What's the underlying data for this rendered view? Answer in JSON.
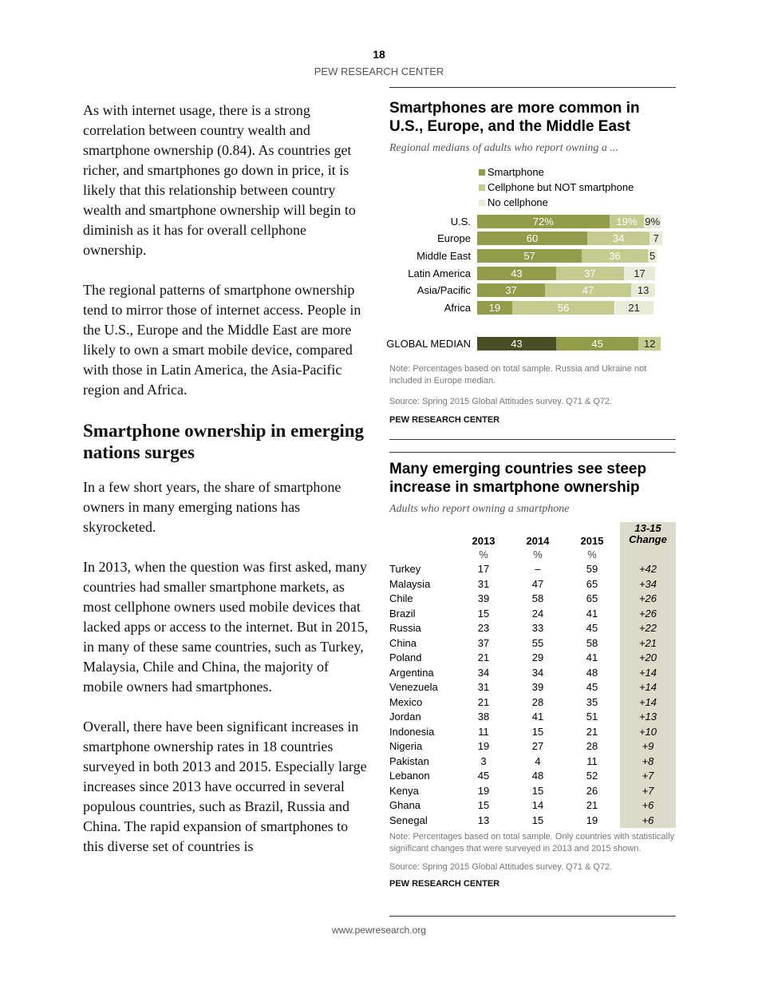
{
  "header": {
    "page_number": "18",
    "org": "PEW RESEARCH CENTER"
  },
  "body": {
    "p1": "As with internet usage, there is a strong correlation between country wealth and smartphone ownership (0.84). As countries get richer, and smartphones go down in price, it is likely that this relationship between country wealth and smartphone ownership will begin to diminish as it has for overall cellphone ownership.",
    "p2": "The regional patterns of smartphone ownership tend to mirror those of internet access. People in the U.S., Europe and the Middle East are more likely to own a smart mobile device, compared with those in Latin America, the Asia-Pacific region and Africa.",
    "h2": "Smartphone ownership in emerging nations surges",
    "p3": "In a few short years, the share of smartphone owners in many emerging nations has skyrocketed.",
    "p4": "In 2013, when the question was first asked, many countries had smaller smartphone markets, as most cellphone owners used mobile devices that lacked apps or access to the internet. But in 2015, in many of these same countries, such as Turkey, Malaysia, Chile and China, the majority of mobile owners had smartphones.",
    "p5": "Overall, there have been significant increases in smartphone ownership rates in 18 countries surveyed in both 2013 and 2015. Especially large increases since 2013 have occurred in several populous countries, such as Brazil, Russia and China. The rapid expansion of smartphones to this diverse set of countries is"
  },
  "chart_data": [
    {
      "type": "bar",
      "stacked": true,
      "orientation": "horizontal",
      "title": "Smartphones are more common in U.S., Europe, and the Middle East",
      "subtitle": "Regional medians of adults who report owning a ...",
      "categories": [
        "U.S.",
        "Europe",
        "Middle East",
        "Latin America",
        "Asia/Pacific",
        "Africa",
        "GLOBAL MEDIAN"
      ],
      "series": [
        {
          "name": "Smartphone",
          "values": [
            72,
            60,
            57,
            43,
            37,
            19,
            43
          ],
          "color": "#939c48"
        },
        {
          "name": "Cellphone but NOT smartphone",
          "values": [
            19,
            34,
            36,
            37,
            47,
            56,
            45
          ],
          "color": "#c5ca8f"
        },
        {
          "name": "No cellphone",
          "values": [
            9,
            7,
            5,
            17,
            13,
            21,
            12
          ],
          "color": "#e9ebd9"
        }
      ],
      "global_median_colors": [
        "#4b4d25",
        "#939c48",
        "#c5ca8f"
      ],
      "data_labels": [
        [
          "72%",
          "19%",
          "9%"
        ],
        [
          "60",
          "34",
          "7"
        ],
        [
          "57",
          "36",
          "5"
        ],
        [
          "43",
          "37",
          "17"
        ],
        [
          "37",
          "47",
          "13"
        ],
        [
          "19",
          "56",
          "21"
        ],
        [
          "43",
          "45",
          "12"
        ]
      ],
      "legend": "top",
      "note": "Note: Percentages based on total sample. Russia and Ukraine not included in Europe median.",
      "source": "Source: Spring 2015 Global Attitudes survey. Q71 & Q72.",
      "brand": "PEW RESEARCH CENTER"
    },
    {
      "type": "table",
      "title": "Many emerging countries see steep increase in smartphone ownership",
      "subtitle": "Adults who report owning a smartphone",
      "columns": [
        "2013",
        "2014",
        "2015",
        "13-15 Change"
      ],
      "units": [
        "%",
        "%",
        "%"
      ],
      "rows": [
        [
          "Turkey",
          "17",
          "–",
          "59",
          "+42"
        ],
        [
          "Malaysia",
          "31",
          "47",
          "65",
          "+34"
        ],
        [
          "Chile",
          "39",
          "58",
          "65",
          "+26"
        ],
        [
          "Brazil",
          "15",
          "24",
          "41",
          "+26"
        ],
        [
          "Russia",
          "23",
          "33",
          "45",
          "+22"
        ],
        [
          "China",
          "37",
          "55",
          "58",
          "+21"
        ],
        [
          "Poland",
          "21",
          "29",
          "41",
          "+20"
        ],
        [
          "Argentina",
          "34",
          "34",
          "48",
          "+14"
        ],
        [
          "Venezuela",
          "31",
          "39",
          "45",
          "+14"
        ],
        [
          "Mexico",
          "21",
          "28",
          "35",
          "+14"
        ],
        [
          "Jordan",
          "38",
          "41",
          "51",
          "+13"
        ],
        [
          "Indonesia",
          "11",
          "15",
          "21",
          "+10"
        ],
        [
          "Nigeria",
          "19",
          "27",
          "28",
          "+9"
        ],
        [
          "Pakistan",
          "3",
          "4",
          "11",
          "+8"
        ],
        [
          "Lebanon",
          "45",
          "48",
          "52",
          "+7"
        ],
        [
          "Kenya",
          "19",
          "15",
          "26",
          "+7"
        ],
        [
          "Ghana",
          "15",
          "14",
          "21",
          "+6"
        ],
        [
          "Senegal",
          "13",
          "15",
          "19",
          "+6"
        ]
      ],
      "note": "Note: Percentages based on total sample. Only countries with statistically significant changes that were surveyed in 2013 and 2015 shown.",
      "source": "Source: Spring 2015 Global Attitudes survey. Q71 & Q72.",
      "brand": "PEW RESEARCH CENTER"
    }
  ],
  "footer": {
    "url": "www.pewresearch.org"
  }
}
